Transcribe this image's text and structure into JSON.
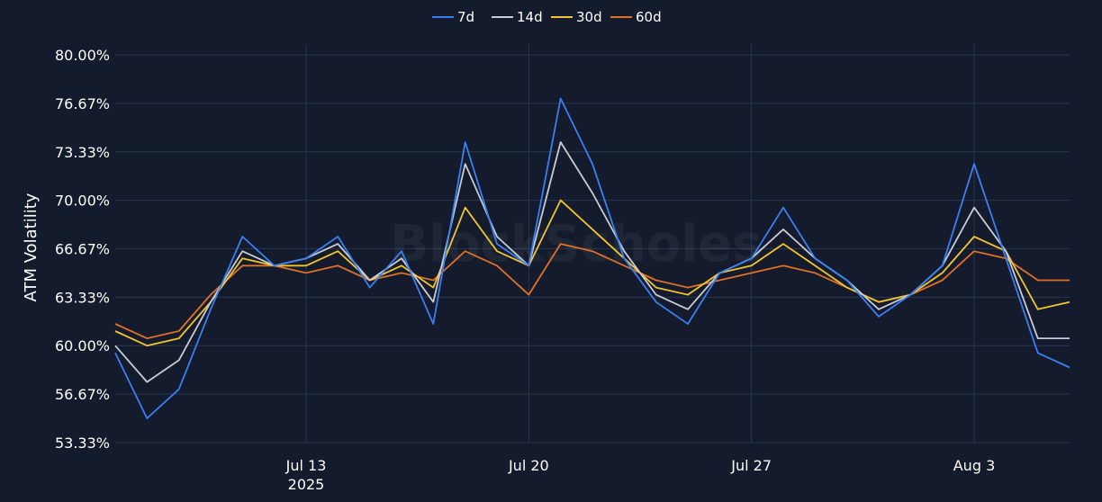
{
  "chart_data": {
    "type": "line",
    "title": "",
    "xlabel": "",
    "ylabel": "ATM Volatility",
    "watermark": "BlockScholes",
    "x_start": "2025-07-07",
    "x_end": "2025-08-06",
    "x_ticks": [
      {
        "date": "2025-07-13",
        "label": "Jul 13",
        "sublabel": "2025"
      },
      {
        "date": "2025-07-20",
        "label": "Jul 20",
        "sublabel": ""
      },
      {
        "date": "2025-07-27",
        "label": "Jul 27",
        "sublabel": ""
      },
      {
        "date": "2025-08-03",
        "label": "Aug 3",
        "sublabel": ""
      }
    ],
    "y_ticks": [
      "53.33%",
      "56.67%",
      "60.00%",
      "63.33%",
      "66.67%",
      "70.00%",
      "73.33%",
      "76.67%",
      "80.00%"
    ],
    "ylim": [
      53.33,
      80.0
    ],
    "grid": true,
    "legend_position": "top-center",
    "series": [
      {
        "name": "7d",
        "color": "#3b7ff0",
        "x": [
          "2025-07-07",
          "2025-07-08",
          "2025-07-09",
          "2025-07-10",
          "2025-07-11",
          "2025-07-12",
          "2025-07-13",
          "2025-07-14",
          "2025-07-15",
          "2025-07-16",
          "2025-07-17",
          "2025-07-18",
          "2025-07-19",
          "2025-07-20",
          "2025-07-21",
          "2025-07-22",
          "2025-07-23",
          "2025-07-24",
          "2025-07-25",
          "2025-07-26",
          "2025-07-27",
          "2025-07-28",
          "2025-07-29",
          "2025-07-30",
          "2025-07-31",
          "2025-08-01",
          "2025-08-02",
          "2025-08-03",
          "2025-08-04",
          "2025-08-05",
          "2025-08-06"
        ],
        "y": [
          59.5,
          55.0,
          57.0,
          62.5,
          67.5,
          65.5,
          66.0,
          67.5,
          64.0,
          66.5,
          61.5,
          74.0,
          67.0,
          65.5,
          77.0,
          72.5,
          66.0,
          63.0,
          61.5,
          65.0,
          66.0,
          69.5,
          66.0,
          64.5,
          62.0,
          63.5,
          65.5,
          72.5,
          66.0,
          59.5,
          58.5
        ]
      },
      {
        "name": "14d",
        "color": "#c9ccd4",
        "x": [
          "2025-07-07",
          "2025-07-08",
          "2025-07-09",
          "2025-07-10",
          "2025-07-11",
          "2025-07-12",
          "2025-07-13",
          "2025-07-14",
          "2025-07-15",
          "2025-07-16",
          "2025-07-17",
          "2025-07-18",
          "2025-07-19",
          "2025-07-20",
          "2025-07-21",
          "2025-07-22",
          "2025-07-23",
          "2025-07-24",
          "2025-07-25",
          "2025-07-26",
          "2025-07-27",
          "2025-07-28",
          "2025-07-29",
          "2025-07-30",
          "2025-07-31",
          "2025-08-01",
          "2025-08-02",
          "2025-08-03",
          "2025-08-04",
          "2025-08-05",
          "2025-08-06"
        ],
        "y": [
          60.0,
          57.5,
          59.0,
          63.0,
          66.5,
          65.5,
          66.0,
          67.0,
          64.5,
          66.0,
          63.0,
          72.5,
          67.5,
          65.5,
          74.0,
          70.5,
          66.5,
          63.5,
          62.5,
          65.0,
          66.0,
          68.0,
          66.0,
          64.5,
          62.5,
          63.5,
          65.5,
          69.5,
          66.5,
          60.5,
          60.5
        ]
      },
      {
        "name": "30d",
        "color": "#f2c52e",
        "x": [
          "2025-07-07",
          "2025-07-08",
          "2025-07-09",
          "2025-07-10",
          "2025-07-11",
          "2025-07-12",
          "2025-07-13",
          "2025-07-14",
          "2025-07-15",
          "2025-07-16",
          "2025-07-17",
          "2025-07-18",
          "2025-07-19",
          "2025-07-20",
          "2025-07-21",
          "2025-07-22",
          "2025-07-23",
          "2025-07-24",
          "2025-07-25",
          "2025-07-26",
          "2025-07-27",
          "2025-07-28",
          "2025-07-29",
          "2025-07-30",
          "2025-07-31",
          "2025-08-01",
          "2025-08-02",
          "2025-08-03",
          "2025-08-04",
          "2025-08-05",
          "2025-08-06"
        ],
        "y": [
          61.0,
          60.0,
          60.5,
          63.0,
          66.0,
          65.5,
          65.5,
          66.5,
          64.5,
          65.5,
          64.0,
          69.5,
          66.5,
          65.5,
          70.0,
          68.0,
          66.0,
          64.0,
          63.5,
          65.0,
          65.5,
          67.0,
          65.5,
          64.0,
          63.0,
          63.5,
          65.0,
          67.5,
          66.5,
          62.5,
          63.0
        ]
      },
      {
        "name": "60d",
        "color": "#e07028",
        "x": [
          "2025-07-07",
          "2025-07-08",
          "2025-07-09",
          "2025-07-10",
          "2025-07-11",
          "2025-07-12",
          "2025-07-13",
          "2025-07-14",
          "2025-07-15",
          "2025-07-16",
          "2025-07-17",
          "2025-07-18",
          "2025-07-19",
          "2025-07-20",
          "2025-07-21",
          "2025-07-22",
          "2025-07-23",
          "2025-07-24",
          "2025-07-25",
          "2025-07-26",
          "2025-07-27",
          "2025-07-28",
          "2025-07-29",
          "2025-07-30",
          "2025-07-31",
          "2025-08-01",
          "2025-08-02",
          "2025-08-03",
          "2025-08-04",
          "2025-08-05",
          "2025-08-06"
        ],
        "y": [
          61.5,
          60.5,
          61.0,
          63.5,
          65.5,
          65.5,
          65.0,
          65.5,
          64.5,
          65.0,
          64.5,
          66.5,
          65.5,
          63.5,
          67.0,
          66.5,
          65.5,
          64.5,
          64.0,
          64.5,
          65.0,
          65.5,
          65.0,
          64.0,
          63.0,
          63.5,
          64.5,
          66.5,
          66.0,
          64.5,
          64.5
        ]
      }
    ]
  }
}
